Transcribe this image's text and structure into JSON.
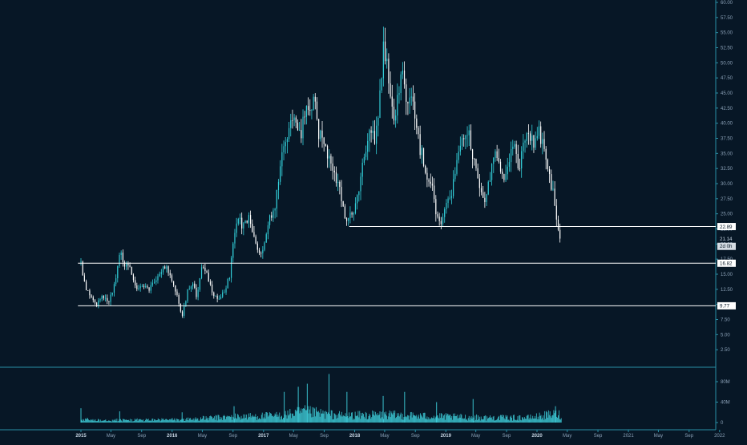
{
  "chart_data": {
    "type": "candlestick",
    "title": "",
    "xlabel": "",
    "ylabel": "",
    "price_axis": {
      "ylim": [
        0,
        60
      ],
      "ticks": [
        "2.50",
        "5.00",
        "7.50",
        "10.00",
        "12.50",
        "15.00",
        "17.50",
        "20.00",
        "22.50",
        "25.00",
        "27.50",
        "30.00",
        "32.50",
        "35.00",
        "37.50",
        "40.00",
        "42.50",
        "45.00",
        "47.50",
        "50.00",
        "52.50",
        "55.00",
        "57.50",
        "60.00"
      ]
    },
    "volume_axis": {
      "ylim": [
        0,
        95
      ],
      "ticks": [
        {
          "label": "0",
          "value": 0
        },
        {
          "label": "40M",
          "value": 40
        },
        {
          "label": "80M",
          "value": 80
        }
      ]
    },
    "x_axis": {
      "range": [
        "2014-11-20",
        "2022-01-15"
      ],
      "ticks": [
        {
          "label": "2015",
          "date": "2015-01-01",
          "bold": true
        },
        {
          "label": "May",
          "date": "2015-05-01",
          "bold": false
        },
        {
          "label": "Sep",
          "date": "2015-09-01",
          "bold": false
        },
        {
          "label": "2016",
          "date": "2016-01-01",
          "bold": true
        },
        {
          "label": "May",
          "date": "2016-05-01",
          "bold": false
        },
        {
          "label": "Sep",
          "date": "2016-09-01",
          "bold": false
        },
        {
          "label": "2017",
          "date": "2017-01-01",
          "bold": true
        },
        {
          "label": "May",
          "date": "2017-05-01",
          "bold": false
        },
        {
          "label": "Sep",
          "date": "2017-09-01",
          "bold": false
        },
        {
          "label": "2018",
          "date": "2018-01-01",
          "bold": true
        },
        {
          "label": "May",
          "date": "2018-05-01",
          "bold": false
        },
        {
          "label": "Sep",
          "date": "2018-09-01",
          "bold": false
        },
        {
          "label": "2019",
          "date": "2019-01-01",
          "bold": true
        },
        {
          "label": "May",
          "date": "2019-05-01",
          "bold": false
        },
        {
          "label": "Sep",
          "date": "2019-09-01",
          "bold": false
        },
        {
          "label": "2020",
          "date": "2020-01-01",
          "bold": true
        },
        {
          "label": "May",
          "date": "2020-05-01",
          "bold": false
        },
        {
          "label": "Sep",
          "date": "2020-09-01",
          "bold": false
        },
        {
          "label": "2021",
          "date": "2021-01-01",
          "bold": false
        },
        {
          "label": "May",
          "date": "2021-05-01",
          "bold": false
        },
        {
          "label": "Sep",
          "date": "2021-09-01",
          "bold": false
        },
        {
          "label": "2022",
          "date": "2022-01-01",
          "bold": false
        }
      ]
    },
    "price_path": [
      [
        "2015-01-01",
        17.0
      ],
      [
        "2015-01-20",
        12.5
      ],
      [
        "2015-02-10",
        11.0
      ],
      [
        "2015-03-05",
        10.2
      ],
      [
        "2015-04-01",
        11.5
      ],
      [
        "2015-04-20",
        10.5
      ],
      [
        "2015-05-15",
        13.0
      ],
      [
        "2015-06-05",
        19.0
      ],
      [
        "2015-06-25",
        16.0
      ],
      [
        "2015-07-15",
        17.0
      ],
      [
        "2015-08-10",
        12.0
      ],
      [
        "2015-09-05",
        13.0
      ],
      [
        "2015-10-01",
        12.5
      ],
      [
        "2015-11-01",
        14.5
      ],
      [
        "2015-12-01",
        16.5
      ],
      [
        "2016-01-01",
        14.0
      ],
      [
        "2016-01-25",
        11.0
      ],
      [
        "2016-02-10",
        8.0
      ],
      [
        "2016-03-01",
        12.0
      ],
      [
        "2016-03-25",
        13.5
      ],
      [
        "2016-04-10",
        11.0
      ],
      [
        "2016-04-25",
        16.0
      ],
      [
        "2016-05-20",
        15.0
      ],
      [
        "2016-06-10",
        12.0
      ],
      [
        "2016-07-01",
        10.5
      ],
      [
        "2016-07-25",
        12.0
      ],
      [
        "2016-08-20",
        15.0
      ],
      [
        "2016-09-05",
        22.0
      ],
      [
        "2016-09-25",
        24.0
      ],
      [
        "2016-10-15",
        22.5
      ],
      [
        "2016-11-01",
        24.5
      ],
      [
        "2016-11-25",
        21.0
      ],
      [
        "2016-12-15",
        18.0
      ],
      [
        "2017-01-01",
        20.0
      ],
      [
        "2017-01-25",
        24.0
      ],
      [
        "2017-02-15",
        26.5
      ],
      [
        "2017-03-05",
        32.0
      ],
      [
        "2017-03-25",
        37.0
      ],
      [
        "2017-04-15",
        39.0
      ],
      [
        "2017-05-01",
        42.0
      ],
      [
        "2017-05-20",
        37.0
      ],
      [
        "2017-06-10",
        40.0
      ],
      [
        "2017-06-25",
        44.0
      ],
      [
        "2017-07-10",
        40.0
      ],
      [
        "2017-07-25",
        45.5
      ],
      [
        "2017-08-10",
        38.0
      ],
      [
        "2017-09-01",
        37.0
      ],
      [
        "2017-09-25",
        33.0
      ],
      [
        "2017-10-15",
        31.0
      ],
      [
        "2017-11-05",
        29.0
      ],
      [
        "2017-11-25",
        24.0
      ],
      [
        "2017-12-15",
        24.5
      ],
      [
        "2018-01-05",
        26.0
      ],
      [
        "2018-01-25",
        31.0
      ],
      [
        "2018-02-15",
        35.0
      ],
      [
        "2018-03-05",
        39.0
      ],
      [
        "2018-03-25",
        37.0
      ],
      [
        "2018-04-10",
        44.0
      ],
      [
        "2018-04-25",
        52.0
      ],
      [
        "2018-05-10",
        50.0
      ],
      [
        "2018-05-25",
        45.0
      ],
      [
        "2018-06-10",
        41.0
      ],
      [
        "2018-06-30",
        46.0
      ],
      [
        "2018-07-15",
        47.5
      ],
      [
        "2018-08-01",
        43.0
      ],
      [
        "2018-08-20",
        45.0
      ],
      [
        "2018-09-05",
        39.0
      ],
      [
        "2018-09-25",
        35.0
      ],
      [
        "2018-10-15",
        32.0
      ],
      [
        "2018-11-05",
        30.0
      ],
      [
        "2018-11-25",
        24.5
      ],
      [
        "2018-12-15",
        24.0
      ],
      [
        "2019-01-05",
        27.0
      ],
      [
        "2019-01-25",
        29.0
      ],
      [
        "2019-02-15",
        33.0
      ],
      [
        "2019-03-05",
        37.5
      ],
      [
        "2019-03-25",
        39.0
      ],
      [
        "2019-04-15",
        36.0
      ],
      [
        "2019-05-05",
        31.0
      ],
      [
        "2019-05-25",
        28.0
      ],
      [
        "2019-06-10",
        27.0
      ],
      [
        "2019-06-25",
        31.0
      ],
      [
        "2019-07-15",
        36.0
      ],
      [
        "2019-08-01",
        33.0
      ],
      [
        "2019-08-20",
        30.0
      ],
      [
        "2019-09-10",
        34.0
      ],
      [
        "2019-09-30",
        37.0
      ],
      [
        "2019-10-20",
        33.0
      ],
      [
        "2019-11-10",
        36.0
      ],
      [
        "2019-12-01",
        38.5
      ],
      [
        "2019-12-20",
        37.0
      ],
      [
        "2020-01-10",
        39.0
      ],
      [
        "2020-01-25",
        36.0
      ],
      [
        "2020-02-10",
        33.0
      ],
      [
        "2020-02-25",
        30.0
      ],
      [
        "2020-03-10",
        28.0
      ],
      [
        "2020-03-22",
        22.0
      ],
      [
        "2020-04-01",
        21.0
      ],
      [
        "2020-04-07",
        21.5
      ]
    ],
    "volume_profile": [
      [
        "2015-01-01",
        6
      ],
      [
        "2015-06-15",
        5
      ],
      [
        "2016-02-01",
        6
      ],
      [
        "2016-09-15",
        12
      ],
      [
        "2017-03-01",
        14
      ],
      [
        "2017-06-15",
        22
      ],
      [
        "2017-11-15",
        14
      ],
      [
        "2018-05-01",
        16
      ],
      [
        "2018-10-15",
        13
      ],
      [
        "2019-06-01",
        10
      ],
      [
        "2019-12-01",
        10
      ],
      [
        "2020-03-20",
        18
      ],
      [
        "2020-04-07",
        15
      ]
    ],
    "volume_spikes": [
      {
        "date": "2015-01-01",
        "value": 28
      },
      {
        "date": "2015-06-05",
        "value": 22
      },
      {
        "date": "2016-02-10",
        "value": 20
      },
      {
        "date": "2016-09-05",
        "value": 32
      },
      {
        "date": "2017-03-25",
        "value": 60
      },
      {
        "date": "2017-05-20",
        "value": 70
      },
      {
        "date": "2017-06-25",
        "value": 76
      },
      {
        "date": "2017-09-20",
        "value": 95
      },
      {
        "date": "2017-12-01",
        "value": 60
      },
      {
        "date": "2018-04-25",
        "value": 52
      },
      {
        "date": "2018-07-20",
        "value": 60
      },
      {
        "date": "2018-11-25",
        "value": 40
      },
      {
        "date": "2019-04-20",
        "value": 46
      },
      {
        "date": "2020-03-15",
        "value": 32
      }
    ],
    "horizontal_levels": [
      {
        "label": "22.89",
        "value": 22.89,
        "start": "2017-12-10"
      },
      {
        "label": "16.82",
        "value": 16.82,
        "start": "2014-12-20"
      },
      {
        "label": "9.77",
        "value": 9.77,
        "start": "2014-12-20"
      }
    ],
    "current_price": {
      "label": "21.14",
      "value": 21.14
    },
    "countdown": {
      "label": "2d 0h"
    },
    "colors": {
      "background": "#071726",
      "up": "#33cfd9",
      "down": "#ffffff",
      "volume": "#3fd2de",
      "level_line": "#ffffff",
      "axis_text": "#8aa0b6",
      "axis_line": "#2a8fa6"
    }
  }
}
